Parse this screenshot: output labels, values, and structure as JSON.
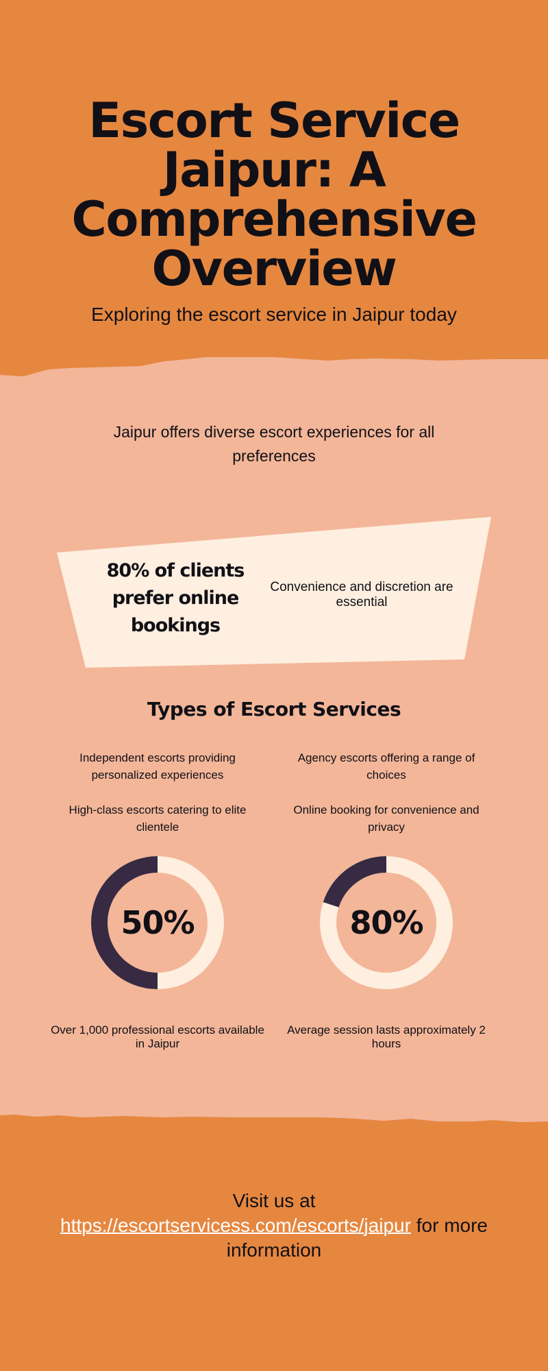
{
  "colors": {
    "orange": "#E68740",
    "peach": "#F3B699",
    "cream": "#FEEFE0",
    "dark": "#372A42",
    "text": "#111016"
  },
  "header": {
    "title": "Escort Service Jaipur: A Comprehensive Overview",
    "subtitle": "Exploring the escort service in Jaipur today"
  },
  "intro": "Jaipur offers diverse escort experiences for all preferences",
  "highlight": {
    "stat": "80% of clients prefer online bookings",
    "note": "Convenience and discretion are essential"
  },
  "types": {
    "heading": "Types of Escort Services",
    "items": [
      "Independent escorts providing personalized experiences",
      "Agency escorts offering a range of choices",
      "High-class escorts catering to elite clientele",
      "Online booking for convenience and privacy"
    ]
  },
  "donuts": [
    {
      "label": "50%",
      "percent": 50,
      "caption": "Over 1,000 professional escorts available in Jaipur"
    },
    {
      "label": "80%",
      "percent": 20,
      "caption": "Average session lasts approximately 2 hours"
    }
  ],
  "footer": {
    "prefix": "Visit us at",
    "link": "https://escortservicess.com/escorts/jaipur",
    "suffix": "for more information"
  }
}
